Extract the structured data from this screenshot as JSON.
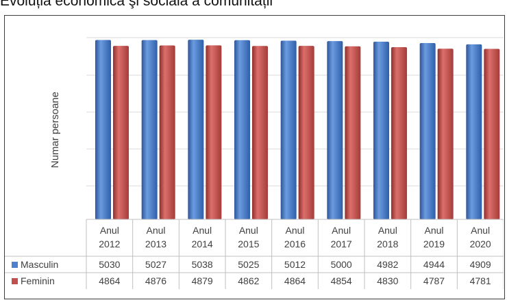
{
  "page": {
    "title": "Evoluția economică şi socială a comunității"
  },
  "chart_data": {
    "type": "bar",
    "title": "",
    "xlabel": "",
    "ylabel": "Numar persoane",
    "categories": [
      "Anul 2012",
      "Anul 2013",
      "Anul 2014",
      "Anul 2015",
      "Anul 2016",
      "Anul 2017",
      "Anul 2018",
      "Anul 2019",
      "Anul 2020"
    ],
    "category_lines": [
      [
        "Anul",
        "2012"
      ],
      [
        "Anul",
        "2013"
      ],
      [
        "Anul",
        "2014"
      ],
      [
        "Anul",
        "2015"
      ],
      [
        "Anul",
        "2016"
      ],
      [
        "Anul",
        "2017"
      ],
      [
        "Anul",
        "2018"
      ],
      [
        "Anul",
        "2019"
      ],
      [
        "Anul",
        "2020"
      ]
    ],
    "series": [
      {
        "name": "Masculin",
        "color": "#4f7fcf",
        "values": [
          5030,
          5027,
          5038,
          5025,
          5012,
          5000,
          4982,
          4944,
          4909
        ]
      },
      {
        "name": "Feminin",
        "color": "#c0504d",
        "values": [
          4864,
          4876,
          4879,
          4862,
          4864,
          4854,
          4830,
          4787,
          4781
        ]
      }
    ],
    "grid": true,
    "legend": "data-table-below"
  }
}
